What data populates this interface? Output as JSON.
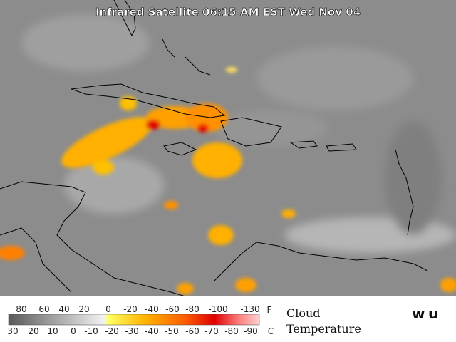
{
  "title": "Infrared Satellite 06:15 AM EST Wed Nov 04",
  "legend": {
    "heading": "Cloud",
    "subheading": "Temperature",
    "fahrenheit_unit": "F",
    "celsius_unit": "C",
    "fahrenheit_labels": [
      80,
      60,
      40,
      20,
      0,
      -20,
      -40,
      -60,
      -80,
      -100,
      -130
    ],
    "celsius_labels": [
      30,
      20,
      10,
      0,
      -10,
      -20,
      -30,
      -40,
      -50,
      -60,
      -70,
      -80,
      -90
    ]
  }
}
